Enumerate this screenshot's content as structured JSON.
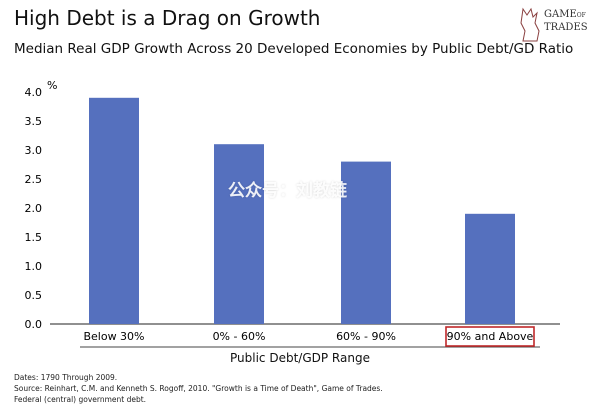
{
  "header": {
    "title": "High Debt is a Drag on Growth",
    "subtitle": "Median Real GDP Growth Across 20 Developed Economies by Public Debt/GD Ratio",
    "logo_text": "GAME of TRADES"
  },
  "watermark": "公众号：刘教链",
  "footnotes": [
    "Dates: 1790 Through 2009.",
    "Source: Reinhart, C.M. and Kenneth S. Rogoff, 2010. \"Growth is a Time of Death\", Game of Trades.",
    "Federal (central) government debt."
  ],
  "chart_data": {
    "type": "bar",
    "categories": [
      "Below 30%",
      "0% - 60%",
      "60% - 90%",
      "90% and Above"
    ],
    "values": [
      3.9,
      3.1,
      2.8,
      1.9
    ],
    "xlabel": "Public Debt/GDP Range",
    "ylabel": "%",
    "ylim": [
      0,
      4.0
    ],
    "yticks": [
      "0.0",
      "0.5",
      "1.0",
      "1.5",
      "2.0",
      "2.5",
      "3.0",
      "3.5",
      "4.0"
    ],
    "grid": false,
    "bar_color": "#5570be",
    "highlight": {
      "category": "90% and Above",
      "color": "#c0282a"
    }
  }
}
